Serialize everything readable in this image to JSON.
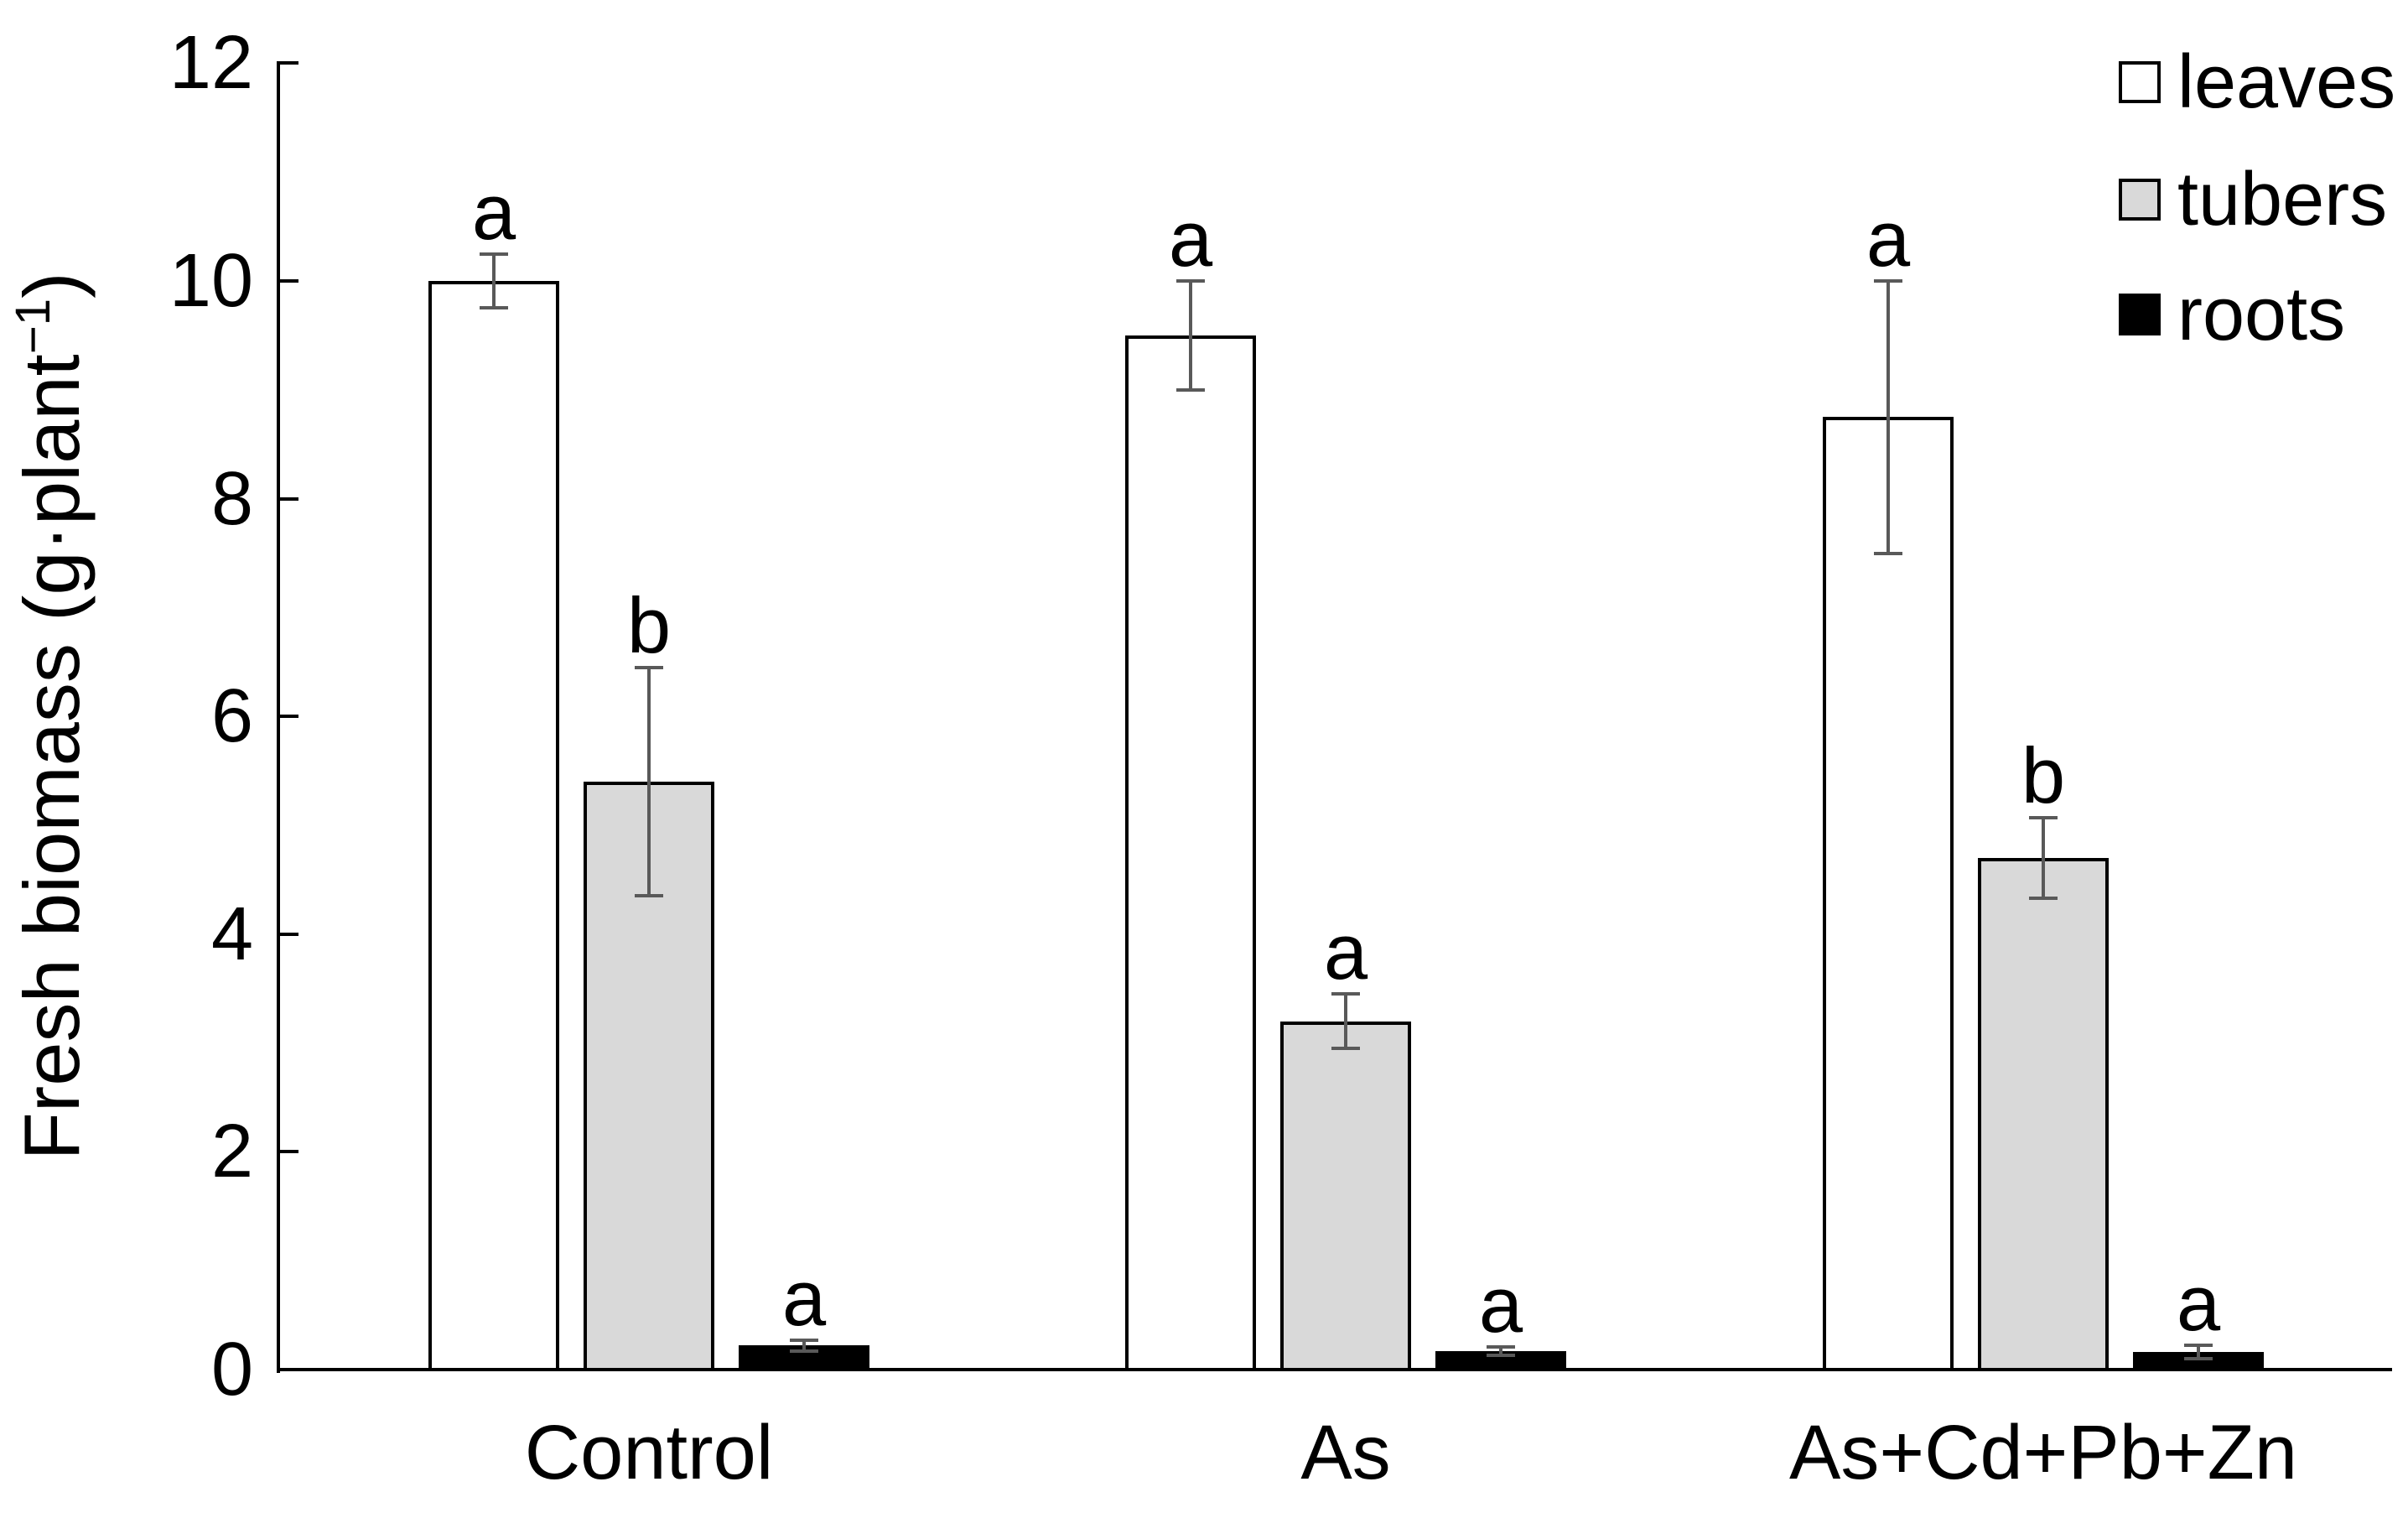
{
  "figure": {
    "y_axis_title": {
      "prefix": "Fresh biomass (g·plant",
      "superscript": "−1",
      "suffix": ")"
    }
  },
  "chart_data": {
    "type": "bar",
    "title": "",
    "xlabel": "",
    "ylabel": "Fresh biomass (g·plant⁻¹)",
    "ylim": [
      0,
      12
    ],
    "ytick_labels": [
      "0",
      "2",
      "4",
      "6",
      "8",
      "10",
      "12"
    ],
    "grid": false,
    "legend_position": "top-right",
    "categories": [
      "Control",
      "As",
      "As+Cd+Pb+Zn"
    ],
    "series": [
      {
        "name": "leaves",
        "fill": "#ffffff",
        "values": [
          10.0,
          9.5,
          8.75
        ],
        "errors": [
          0.25,
          0.5,
          1.25
        ],
        "sig_letters": [
          "a",
          "a",
          "a"
        ]
      },
      {
        "name": "tubers",
        "fill": "#d9d9d9",
        "values": [
          5.4,
          3.2,
          4.7
        ],
        "errors": [
          1.05,
          0.25,
          0.37
        ],
        "sig_letters": [
          "b",
          "a",
          "b"
        ]
      },
      {
        "name": "roots",
        "fill": "#000000",
        "values": [
          0.22,
          0.17,
          0.16
        ],
        "errors": [
          0.05,
          0.04,
          0.06
        ],
        "sig_letters": [
          "a",
          "a",
          "a"
        ]
      }
    ],
    "colors": {
      "background": "#ffffff",
      "bar_border": "#000000",
      "error_bar": "#595959",
      "axis": "#000000",
      "text": "#000000"
    }
  }
}
